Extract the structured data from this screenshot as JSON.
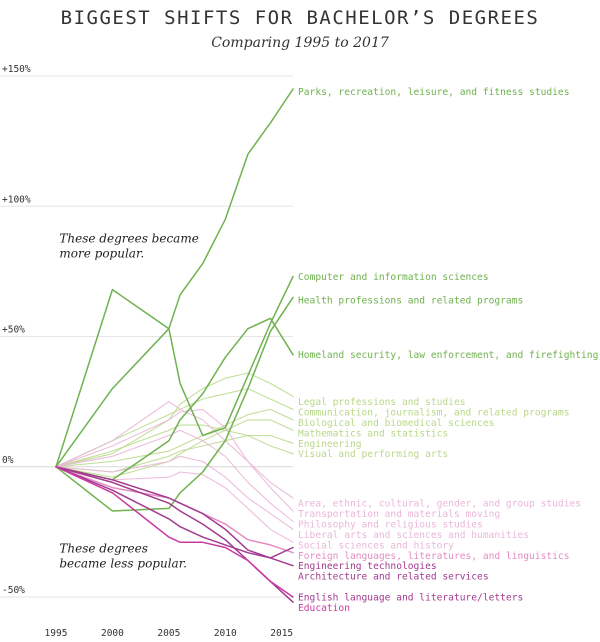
{
  "chart_data": {
    "type": "line",
    "title": "BIGGEST SHIFTS FOR BACHELOR’S DEGREES",
    "subtitle": "Comparing 1995 to 2017",
    "x": [
      1995,
      2000,
      2005,
      2006,
      2008,
      2010,
      2012,
      2014,
      2016
    ],
    "x_ticks": [
      1995,
      2000,
      2005,
      2010,
      2015
    ],
    "x_tick_labels": [
      "1995",
      "2000",
      "2005",
      "2010",
      "2015"
    ],
    "y_ticks": [
      -50,
      0,
      50,
      100,
      150
    ],
    "y_tick_labels": [
      "-50%",
      "0%",
      "+50%",
      "+100%",
      "+150%"
    ],
    "xlim": [
      1995,
      2016
    ],
    "ylim": [
      -55,
      155
    ],
    "grid": true,
    "annotations": [
      {
        "lines": [
          "These degrees became",
          "more popular."
        ],
        "x": 1995.3,
        "y": 86
      },
      {
        "lines": [
          "These degrees",
          "became less popular."
        ],
        "x": 1995.3,
        "y": -33
      }
    ],
    "series": [
      {
        "name": "Parks, recreation, leisure, and fitness studies",
        "color": "#6fb24f",
        "opacity": 1,
        "label_y": 144,
        "values": [
          0,
          30,
          53,
          66,
          78,
          95,
          120,
          132,
          145
        ]
      },
      {
        "name": "Computer and information sciences",
        "color": "#6fb24f",
        "opacity": 1,
        "label_y": 73,
        "values": [
          0,
          68,
          53,
          32,
          12,
          15,
          35,
          55,
          73
        ]
      },
      {
        "name": "Health professions and related programs",
        "color": "#6fb24f",
        "opacity": 1,
        "label_y": 64,
        "values": [
          0,
          -17,
          -16,
          -10,
          -2,
          10,
          30,
          52,
          65
        ]
      },
      {
        "name": "Homeland security, law enforcement, and firefighting",
        "color": "#6fb24f",
        "opacity": 1,
        "label_y": 43,
        "values": [
          0,
          -5,
          10,
          18,
          28,
          42,
          53,
          57,
          43
        ]
      },
      {
        "name": "Legal professions and studies",
        "color": "#b9d889",
        "opacity": 0.85,
        "label_y": 25,
        "values": [
          0,
          5,
          18,
          24,
          30,
          34,
          36,
          32,
          27
        ]
      },
      {
        "name": "Communication, journalism, and related programs",
        "color": "#b9d889",
        "opacity": 0.85,
        "label_y": 21,
        "values": [
          0,
          10,
          20,
          22,
          26,
          28,
          30,
          26,
          22
        ]
      },
      {
        "name": "Biological and biomedical sciences",
        "color": "#b9d889",
        "opacity": 0.85,
        "label_y": 17,
        "values": [
          0,
          2,
          6,
          8,
          12,
          16,
          20,
          22,
          18
        ]
      },
      {
        "name": "Mathematics and statistics",
        "color": "#b9d889",
        "opacity": 0.85,
        "label_y": 13,
        "values": [
          0,
          -4,
          2,
          5,
          10,
          14,
          18,
          18,
          14
        ]
      },
      {
        "name": "Engineering",
        "color": "#b9d889",
        "opacity": 0.85,
        "label_y": 9,
        "values": [
          0,
          -2,
          4,
          6,
          8,
          10,
          12,
          12,
          9
        ]
      },
      {
        "name": "Visual and performing arts",
        "color": "#b9d889",
        "opacity": 0.85,
        "label_y": 5,
        "values": [
          0,
          6,
          14,
          16,
          16,
          14,
          12,
          8,
          5
        ]
      },
      {
        "name": "Area, ethnic, cultural, gender, and group studies",
        "color": "#eab7d9",
        "opacity": 0.9,
        "label_y": -14,
        "values": [
          0,
          10,
          25,
          22,
          18,
          10,
          2,
          -6,
          -12
        ]
      },
      {
        "name": "Transportation and materials moving",
        "color": "#eab7d9",
        "opacity": 0.9,
        "label_y": -18,
        "values": [
          0,
          8,
          18,
          21,
          22,
          15,
          2,
          -8,
          -17
        ]
      },
      {
        "name": "Philosophy and religious studies",
        "color": "#eab7d9",
        "opacity": 0.9,
        "label_y": -22,
        "values": [
          0,
          4,
          12,
          14,
          10,
          4,
          -6,
          -14,
          -21
        ]
      },
      {
        "name": "Liberal arts and sciences and humanities",
        "color": "#eab7d9",
        "opacity": 0.9,
        "label_y": -26,
        "values": [
          0,
          -2,
          2,
          4,
          2,
          -4,
          -12,
          -18,
          -24
        ]
      },
      {
        "name": "Social sciences and history",
        "color": "#eab7d9",
        "opacity": 0.9,
        "label_y": -30,
        "values": [
          0,
          -5,
          -4,
          -2,
          -3,
          -8,
          -16,
          -24,
          -29
        ]
      },
      {
        "name": "Foreign languages, literatures, and linguistics",
        "color": "#e58cc2",
        "opacity": 1,
        "label_y": -34,
        "values": [
          0,
          -8,
          -12,
          -14,
          -18,
          -22,
          -28,
          -30,
          -33
        ]
      },
      {
        "name": "Engineering technologies",
        "color": "#a23b8f",
        "opacity": 1,
        "label_y": -38,
        "values": [
          0,
          -9,
          -20,
          -23,
          -27,
          -30,
          -33,
          -35,
          -31
        ]
      },
      {
        "name": "Architecture and related services",
        "color": "#a23b8f",
        "opacity": 1,
        "label_y": -42,
        "values": [
          0,
          -5,
          -12,
          -14,
          -18,
          -24,
          -32,
          -35,
          -38
        ]
      },
      {
        "name": "English language and literature/letters",
        "color": "#a23b8f",
        "opacity": 1,
        "label_y": -50,
        "values": [
          0,
          -6,
          -14,
          -17,
          -22,
          -28,
          -36,
          -44,
          -52
        ]
      },
      {
        "name": "Education",
        "color": "#c93aa0",
        "opacity": 1,
        "label_y": -54,
        "values": [
          0,
          -10,
          -27,
          -29,
          -29,
          -31,
          -36,
          -44,
          -50
        ]
      }
    ]
  }
}
